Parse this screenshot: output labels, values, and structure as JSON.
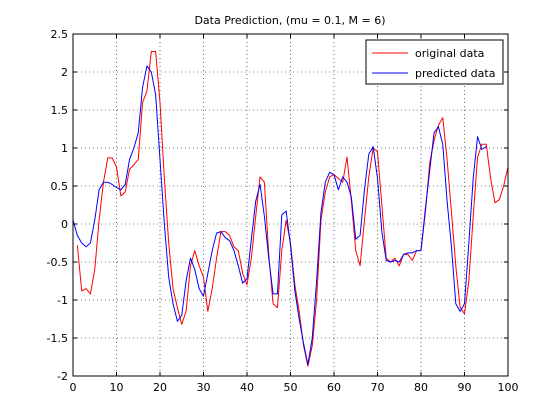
{
  "chart_data": {
    "type": "line",
    "title": "Data Prediction, (mu = 0.1, M = 6)",
    "xlabel": "",
    "ylabel": "",
    "xlim": [
      0,
      100
    ],
    "ylim": [
      -2,
      2.5
    ],
    "xticks": [
      0,
      10,
      20,
      30,
      40,
      50,
      60,
      70,
      80,
      90,
      100
    ],
    "yticks": [
      -2,
      -1.5,
      -1,
      -0.5,
      0,
      0.5,
      1,
      1.5,
      2,
      2.5
    ],
    "xtick_labels": [
      "0",
      "10",
      "20",
      "30",
      "40",
      "50",
      "60",
      "70",
      "80",
      "90",
      "100"
    ],
    "ytick_labels": [
      "-2",
      "-1.5",
      "-1",
      "-0.5",
      "0",
      "0.5",
      "1",
      "1.5",
      "2",
      "2.5"
    ],
    "grid": true,
    "legend_position": "top-right",
    "series": [
      {
        "name": "original data",
        "color": "#ff0000",
        "x": [
          1,
          2,
          3,
          4,
          5,
          6,
          7,
          8,
          9,
          10,
          11,
          12,
          13,
          14,
          15,
          16,
          17,
          18,
          19,
          20,
          21,
          22,
          23,
          24,
          25,
          26,
          27,
          28,
          29,
          30,
          31,
          32,
          33,
          34,
          35,
          36,
          37,
          38,
          39,
          40,
          41,
          42,
          43,
          44,
          45,
          46,
          47,
          48,
          49,
          50,
          51,
          52,
          53,
          54,
          55,
          56,
          57,
          58,
          59,
          60,
          61,
          62,
          63,
          64,
          65,
          66,
          67,
          68,
          69,
          70,
          71,
          72,
          73,
          74,
          75,
          76,
          77,
          78,
          79,
          80,
          81,
          82,
          83,
          84,
          85,
          86,
          87,
          88,
          89,
          90,
          91,
          92,
          93,
          94,
          95,
          96,
          97,
          98,
          99,
          100
        ],
        "y": [
          -0.28,
          -0.88,
          -0.85,
          -0.92,
          -0.6,
          0.05,
          0.55,
          0.87,
          0.87,
          0.75,
          0.37,
          0.42,
          0.72,
          0.78,
          0.85,
          1.6,
          1.75,
          2.27,
          2.27,
          1.6,
          0.6,
          -0.25,
          -0.85,
          -1.1,
          -1.32,
          -1.15,
          -0.55,
          -0.35,
          -0.55,
          -0.7,
          -1.15,
          -0.85,
          -0.45,
          -0.1,
          -0.1,
          -0.15,
          -0.3,
          -0.35,
          -0.65,
          -0.8,
          -0.45,
          0.1,
          0.62,
          0.55,
          -0.4,
          -1.05,
          -1.1,
          -0.35,
          0.05,
          -0.25,
          -0.8,
          -1.15,
          -1.6,
          -1.87,
          -1.6,
          -1.0,
          0.05,
          0.42,
          0.62,
          0.65,
          0.6,
          0.55,
          0.88,
          0.3,
          -0.35,
          -0.55,
          0.05,
          0.62,
          1.0,
          0.95,
          0.25,
          -0.45,
          -0.5,
          -0.45,
          -0.55,
          -0.4,
          -0.4,
          -0.48,
          -0.35,
          -0.35,
          0.15,
          0.8,
          1.1,
          1.3,
          1.4,
          0.85,
          0.15,
          -0.55,
          -1.1,
          -1.18,
          -0.75,
          0.1,
          0.88,
          1.05,
          1.05,
          0.6,
          0.28,
          0.32,
          0.5,
          0.75
        ]
      },
      {
        "name": "predicted data",
        "color": "#0000ff",
        "x": [
          0,
          1,
          2,
          3,
          4,
          5,
          6,
          7,
          8,
          9,
          10,
          11,
          12,
          13,
          14,
          15,
          16,
          17,
          18,
          19,
          20,
          21,
          22,
          23,
          24,
          25,
          26,
          27,
          28,
          29,
          30,
          31,
          32,
          33,
          34,
          35,
          36,
          37,
          38,
          39,
          40,
          41,
          42,
          43,
          44,
          45,
          46,
          47,
          48,
          49,
          50,
          51,
          52,
          53,
          54,
          55,
          56,
          57,
          58,
          59,
          60,
          61,
          62,
          63,
          64,
          65,
          66,
          67,
          68,
          69,
          70,
          71,
          72,
          73,
          74,
          75,
          76,
          77,
          78,
          79,
          80,
          81,
          82,
          83,
          84,
          85,
          86,
          87,
          88,
          89,
          90,
          91,
          92,
          93,
          94,
          95
        ],
        "y": [
          0.05,
          -0.15,
          -0.25,
          -0.3,
          -0.25,
          0.05,
          0.45,
          0.55,
          0.55,
          0.52,
          0.48,
          0.45,
          0.52,
          0.85,
          1.0,
          1.2,
          1.8,
          2.08,
          2.0,
          1.7,
          0.85,
          0.0,
          -0.7,
          -1.05,
          -1.28,
          -1.2,
          -0.75,
          -0.45,
          -0.6,
          -0.85,
          -0.95,
          -0.65,
          -0.35,
          -0.12,
          -0.1,
          -0.18,
          -0.22,
          -0.35,
          -0.55,
          -0.78,
          -0.72,
          -0.2,
          0.3,
          0.52,
          0.1,
          -0.45,
          -0.92,
          -0.92,
          0.12,
          0.17,
          -0.28,
          -0.88,
          -1.25,
          -1.57,
          -1.85,
          -1.5,
          -0.75,
          0.15,
          0.55,
          0.68,
          0.65,
          0.45,
          0.62,
          0.55,
          0.35,
          -0.2,
          -0.15,
          0.45,
          0.92,
          1.02,
          0.6,
          -0.1,
          -0.48,
          -0.5,
          -0.48,
          -0.5,
          -0.4,
          -0.38,
          -0.38,
          -0.35,
          -0.35,
          0.2,
          0.7,
          1.2,
          1.28,
          1.05,
          0.3,
          -0.3,
          -1.05,
          -1.15,
          -1.05,
          -0.25,
          0.6,
          1.15,
          0.98,
          1.02
        ]
      }
    ]
  }
}
